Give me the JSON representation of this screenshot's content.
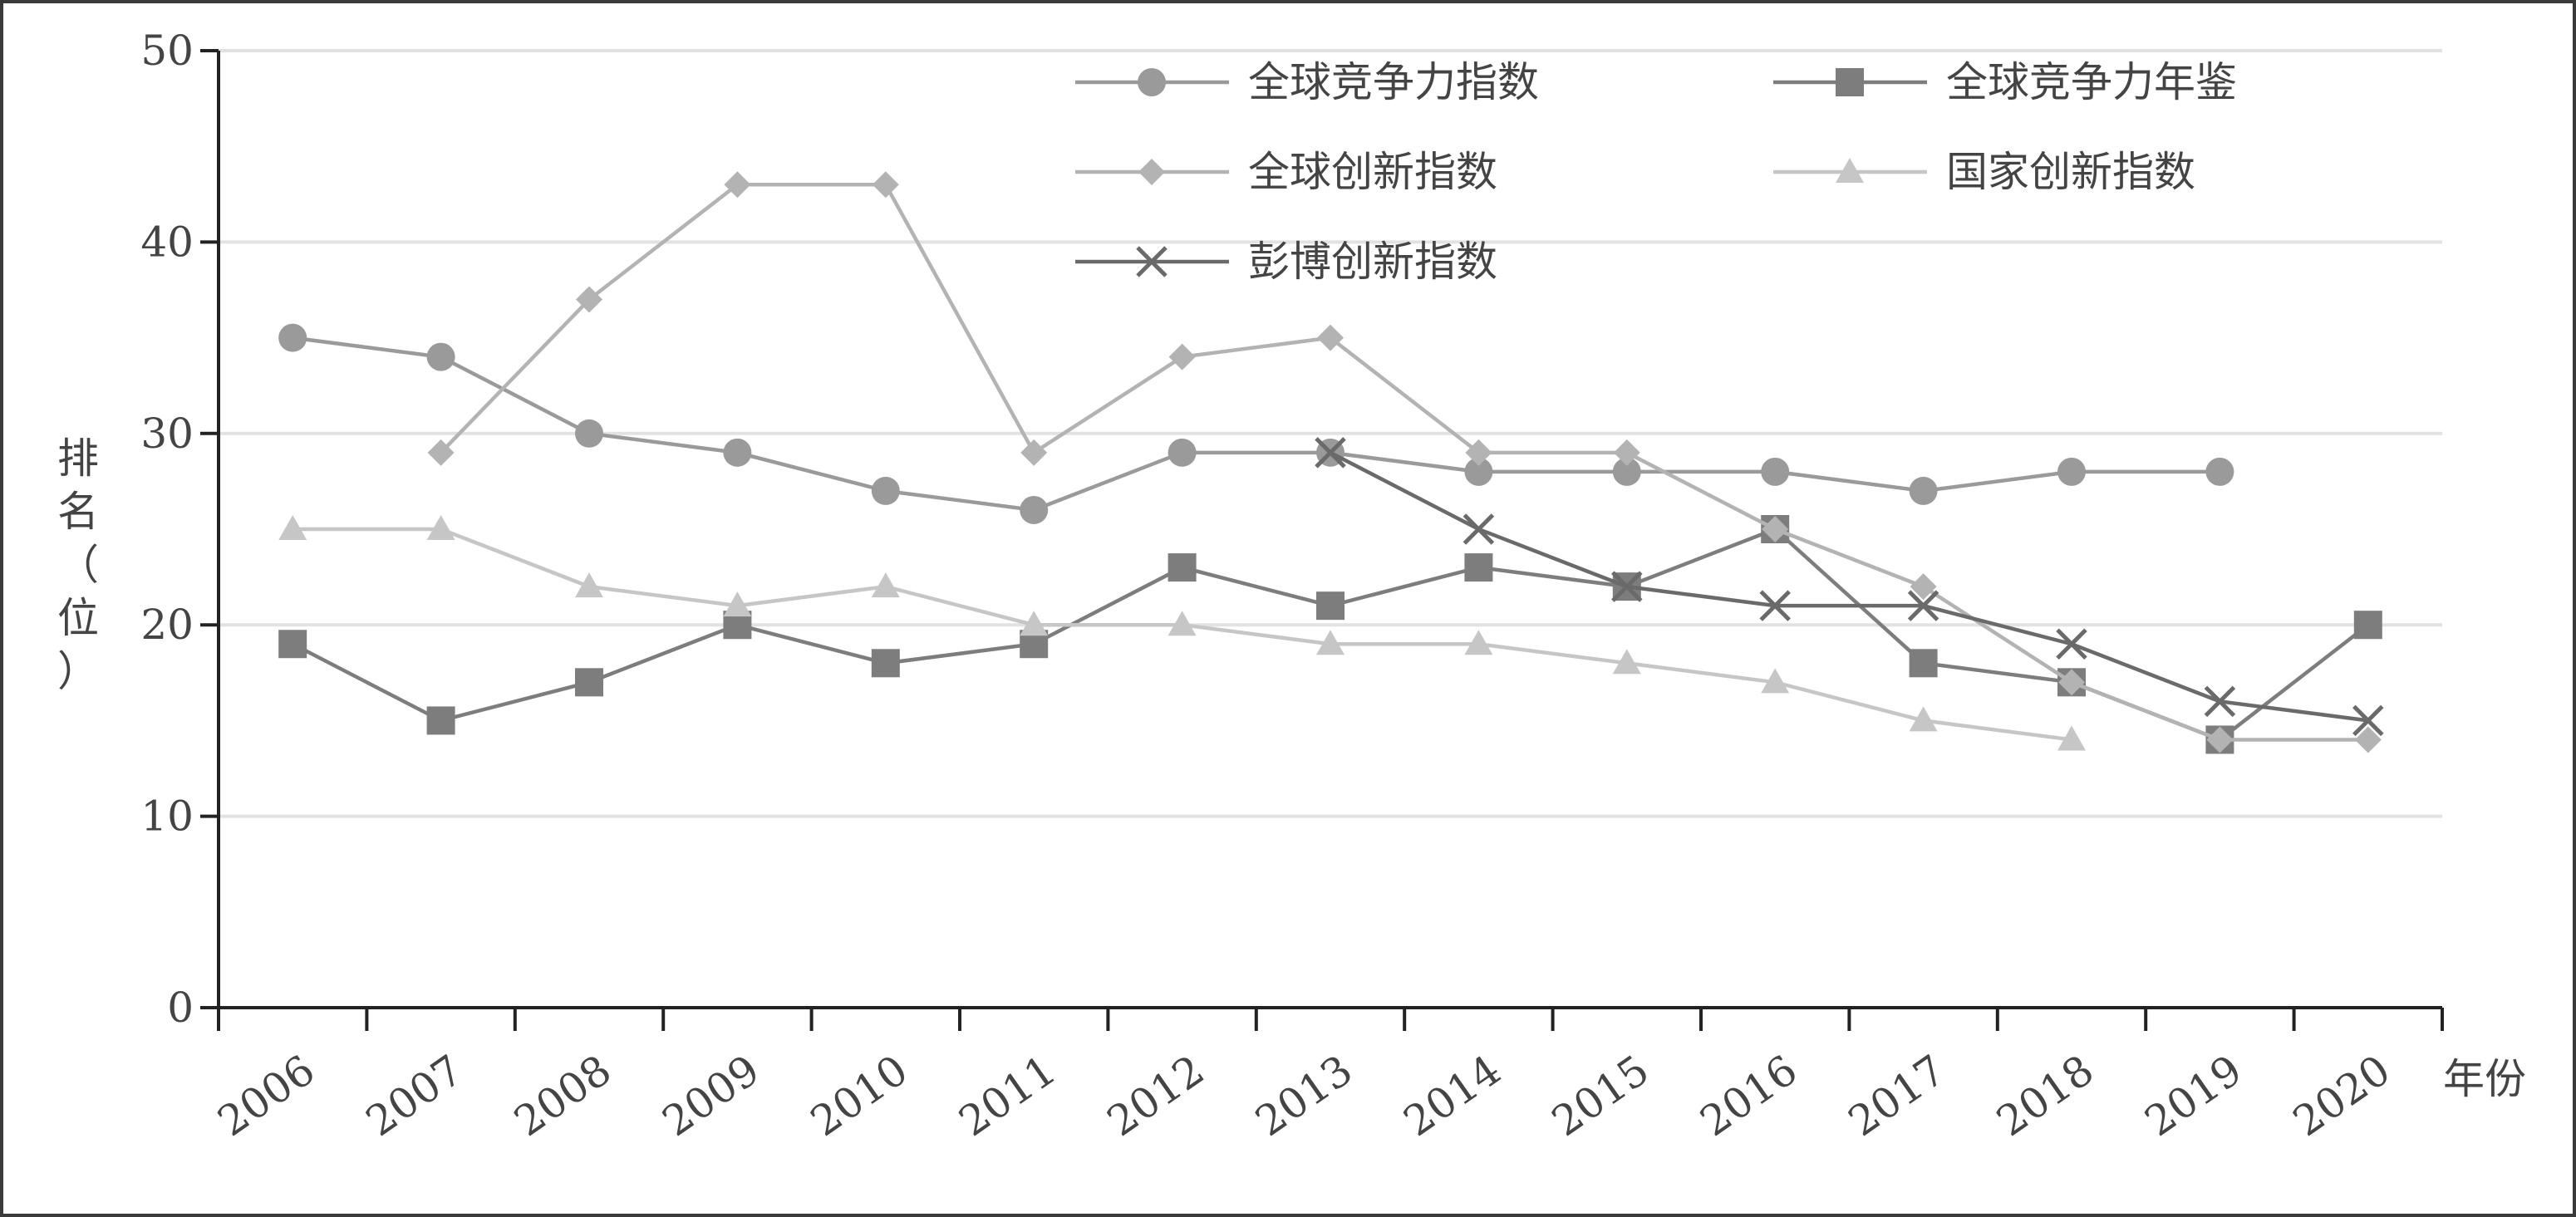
{
  "chart_data": {
    "type": "line",
    "title": "",
    "xlabel": "年份",
    "ylabel_chars": [
      "排",
      "名",
      "（",
      "位",
      "）"
    ],
    "x": [
      "2006",
      "2007",
      "2008",
      "2009",
      "2010",
      "2011",
      "2012",
      "2013",
      "2014",
      "2015",
      "2016",
      "2017",
      "2018",
      "2019",
      "2020"
    ],
    "y_ticks": [
      "0",
      "10",
      "20",
      "30",
      "40",
      "50"
    ],
    "ylim": [
      0,
      50
    ],
    "grid": true,
    "legend_position": "top-center",
    "series": [
      {
        "name": "全球竞争力指数",
        "marker": "circle",
        "color": "#9a9a9a",
        "values": [
          35,
          34,
          30,
          29,
          27,
          26,
          29,
          29,
          28,
          28,
          28,
          27,
          28,
          28,
          null
        ]
      },
      {
        "name": "全球竞争力年鉴",
        "marker": "square",
        "color": "#7d7d7d",
        "values": [
          19,
          15,
          17,
          20,
          18,
          19,
          23,
          21,
          23,
          22,
          25,
          18,
          17,
          14,
          20
        ]
      },
      {
        "name": "全球创新指数",
        "marker": "diamond",
        "color": "#b3b3b3",
        "values": [
          null,
          29,
          37,
          43,
          43,
          29,
          34,
          35,
          29,
          29,
          25,
          22,
          17,
          14,
          14
        ]
      },
      {
        "name": "国家创新指数",
        "marker": "triangle",
        "color": "#c6c6c6",
        "values": [
          25,
          25,
          22,
          21,
          22,
          20,
          20,
          19,
          19,
          18,
          17,
          15,
          14,
          null,
          null
        ]
      },
      {
        "name": "彭博创新指数",
        "marker": "x",
        "color": "#6a6a6a",
        "values": [
          null,
          null,
          null,
          null,
          null,
          null,
          null,
          29,
          25,
          22,
          21,
          21,
          19,
          16,
          15
        ]
      }
    ]
  }
}
